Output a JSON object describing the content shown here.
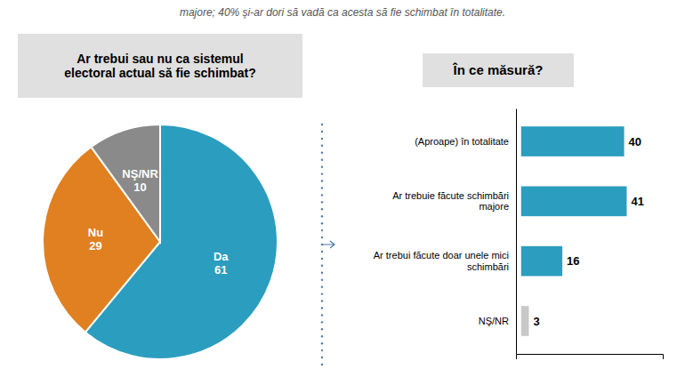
{
  "chart_data": [
    {
      "type": "pie",
      "title": "Ar trebui sau nu ca sistemul\nelectoral actual să fie schimbat?",
      "annotations": [
        "majore; 40% şi-ar dori să vadă ca acesta să fie schimbat în totalitate."
      ],
      "categories": [
        "Da",
        "Nu",
        "NŞ/NR"
      ],
      "values": [
        61,
        29,
        10
      ],
      "colors": [
        "#2B9DBF",
        "#E08020",
        "#8A8A8A"
      ],
      "data_labels": true
    },
    {
      "type": "bar",
      "title": "În ce măsură?",
      "orientation": "horizontal",
      "categories": [
        "(Aproape) în totalitate",
        "Ar trebuie făcute schimbări\nmajore",
        "Ar trebui făcute doar unele mici\nschimbări",
        "NŞ/NR"
      ],
      "values": [
        40,
        41,
        16,
        3
      ],
      "colors": [
        "#2B9DBF",
        "#2B9DBF",
        "#2B9DBF",
        "#C8C8C8"
      ],
      "xlim": [
        -2,
        55
      ],
      "data_labels": true,
      "tick_labels": "y"
    }
  ]
}
